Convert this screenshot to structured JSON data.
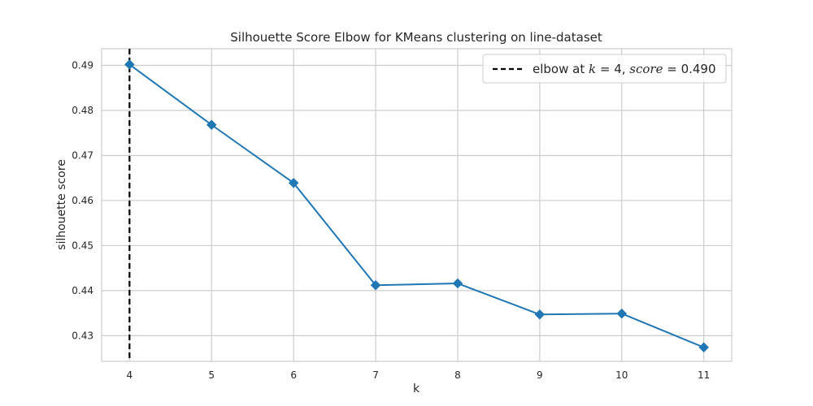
{
  "chart_data": {
    "type": "line",
    "title": "Silhouette Score Elbow for KMeans clustering on line-dataset",
    "xlabel": "k",
    "ylabel": "silhouette score",
    "x": [
      4,
      5,
      6,
      7,
      8,
      9,
      10,
      11
    ],
    "series": [
      {
        "values": [
          0.4902,
          0.4768,
          0.4639,
          0.4412,
          0.4416,
          0.4347,
          0.4349,
          0.4274
        ],
        "color": "#1f77b4",
        "marker": "diamond"
      }
    ],
    "xlim": [
      3.66,
      11.34
    ],
    "ylim": [
      0.4243,
      0.4937
    ],
    "xticks": [
      4,
      5,
      6,
      7,
      8,
      9,
      10,
      11
    ],
    "yticks": [
      0.43,
      0.44,
      0.45,
      0.46,
      0.47,
      0.48,
      0.49
    ],
    "ytick_labels": [
      "0.43",
      "0.44",
      "0.45",
      "0.46",
      "0.47",
      "0.48",
      "0.49"
    ],
    "grid": true,
    "elbow": {
      "k": 4,
      "score": 0.49,
      "color": "#000000",
      "style": "dashed"
    },
    "legend": {
      "placement": "top-right",
      "prefix": "elbow at ",
      "k_symbol": "k",
      "equals": " = ",
      "k_value": "4",
      "separator": ", ",
      "score_symbol": "score",
      "score_value": "0.490"
    }
  }
}
